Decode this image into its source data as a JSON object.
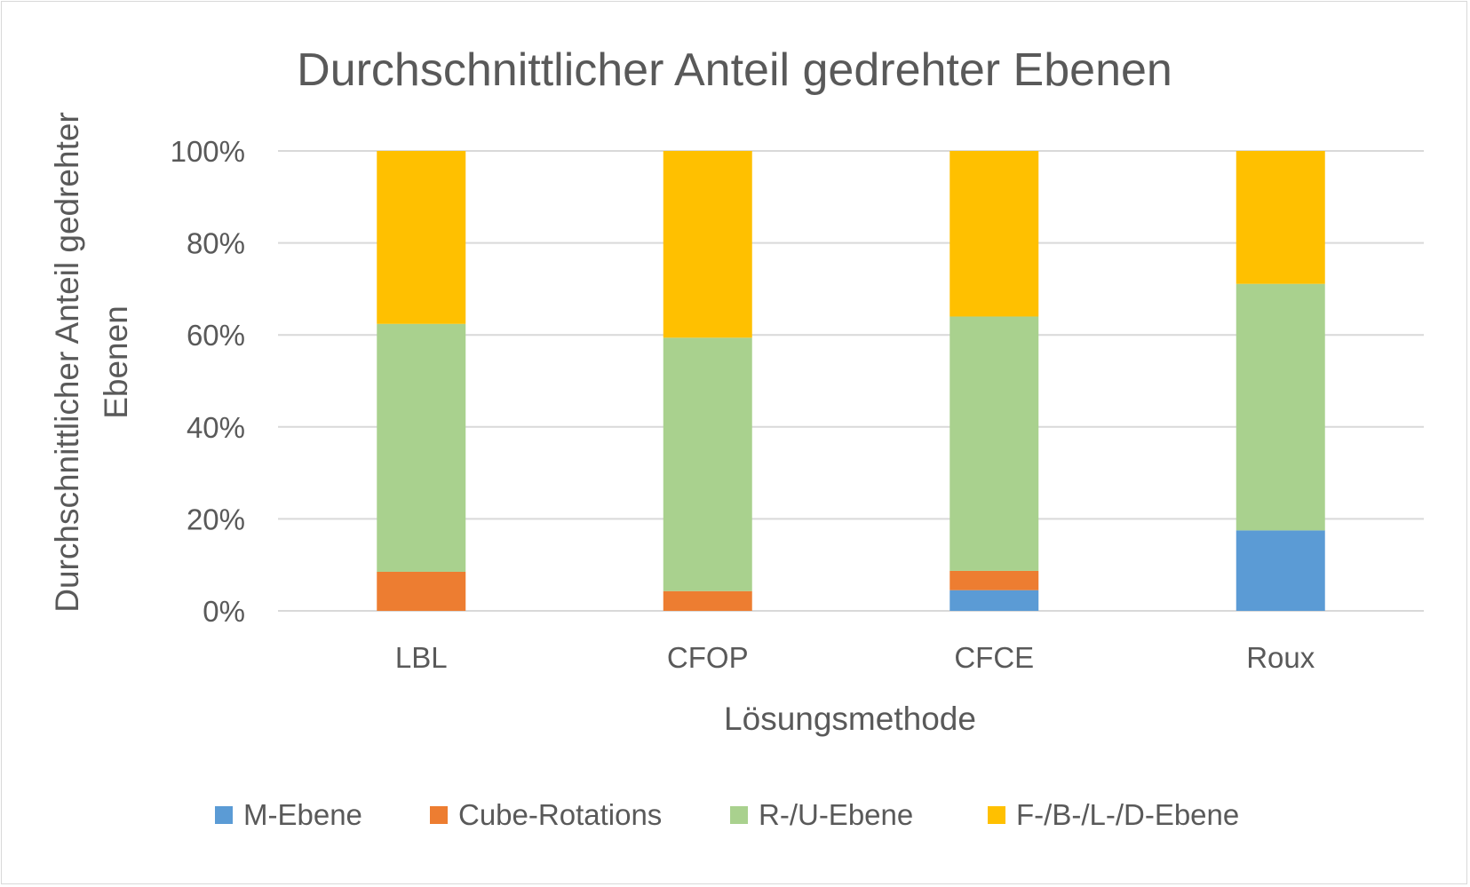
{
  "chart_data": {
    "type": "bar",
    "stacked": true,
    "title": "Durchschnittlicher Anteil gedrehter Ebenen",
    "xlabel": "Lösungsmethode",
    "ylabel_lines": [
      "Durchschnittlicher Anteil gedrehter",
      "Ebenen"
    ],
    "categories": [
      "LBL",
      "CFOP",
      "CFCE",
      "Roux"
    ],
    "ylim": [
      0,
      100
    ],
    "yticks": [
      0,
      20,
      40,
      60,
      80,
      100
    ],
    "ytick_labels": [
      "0%",
      "20%",
      "40%",
      "60%",
      "80%",
      "100%"
    ],
    "grid": true,
    "legend_position": "bottom",
    "series": [
      {
        "name": "M-Ebene",
        "color": "#5B9BD5",
        "values": [
          0,
          0,
          4.5,
          17.5
        ]
      },
      {
        "name": "Cube-Rotations",
        "color": "#ED7D31",
        "values": [
          8.5,
          4.3,
          4.2,
          0
        ]
      },
      {
        "name": "R-/U-Ebene",
        "color": "#A9D18E",
        "values": [
          53.9,
          55.1,
          55.3,
          53.6
        ]
      },
      {
        "name": "F-/B-/L-/D-Ebene",
        "color": "#FFC000",
        "values": [
          37.6,
          40.6,
          36.0,
          28.9
        ]
      }
    ]
  }
}
